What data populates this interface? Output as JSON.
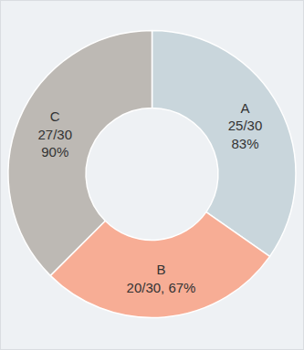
{
  "chart_data": {
    "type": "pie",
    "categories": [
      "A",
      "B",
      "C"
    ],
    "values": [
      25,
      20,
      27
    ],
    "value_labels": [
      "25/30\n83%",
      "20/30, 67%",
      "27/30\n90%"
    ],
    "colors": [
      "#c9d6dc",
      "#f7ad95",
      "#bdb9b4"
    ],
    "data_labels": true
  }
}
